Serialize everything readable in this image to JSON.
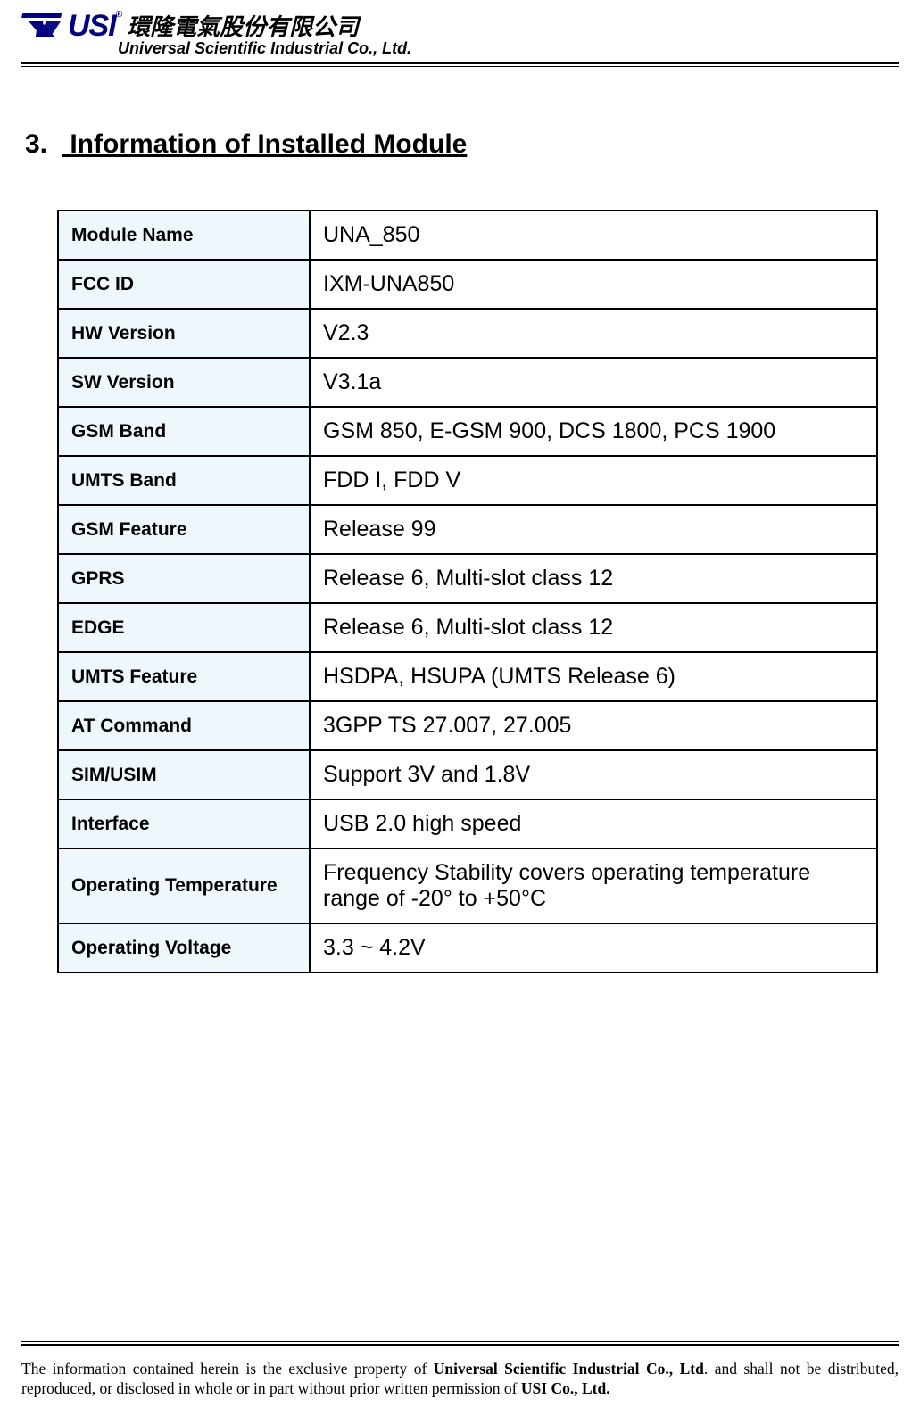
{
  "header": {
    "logo_text": "USI",
    "logo_color": "#000080",
    "chinese_name": "環隆電氣股份有限公司",
    "subtitle": "Universal Scientific Industrial Co., Ltd."
  },
  "section": {
    "number": "3.",
    "title": "Information of Installed Module"
  },
  "table": {
    "label_bg_color": "#eef8fc",
    "border_color": "#000000",
    "label_fontsize": 21,
    "value_fontsize": 25,
    "rows": [
      {
        "label": "Module Name",
        "value": "UNA_850"
      },
      {
        "label": "FCC ID",
        "value": "IXM-UNA850"
      },
      {
        "label": "HW Version",
        "value": "V2.3"
      },
      {
        "label": "SW Version",
        "value": "V3.1a"
      },
      {
        "label": "GSM Band",
        "value": "GSM 850, E-GSM 900, DCS 1800, PCS 1900"
      },
      {
        "label": "UMTS Band",
        "value": "FDD I, FDD V"
      },
      {
        "label": "GSM Feature",
        "value": "Release 99"
      },
      {
        "label": "GPRS",
        "value": "Release 6, Multi-slot class 12"
      },
      {
        "label": "EDGE",
        "value": "Release 6, Multi-slot class 12"
      },
      {
        "label": "UMTS Feature",
        "value": "HSDPA, HSUPA (UMTS Release 6)"
      },
      {
        "label": "AT Command",
        "value": "3GPP TS 27.007, 27.005"
      },
      {
        "label": "SIM/USIM",
        "value": "Support 3V and 1.8V"
      },
      {
        "label": "Interface",
        "value": "USB 2.0 high speed"
      },
      {
        "label": "Operating Temperature",
        "value": "Frequency Stability covers operating temperature range of -20° to +50°C"
      },
      {
        "label": "Operating Voltage",
        "value": "3.3 ~ 4.2V"
      }
    ]
  },
  "footer": {
    "text_prefix": "The information contained herein is the exclusive property of ",
    "company_bold": "Universal Scientific Industrial Co., Ltd",
    "text_mid": ". and shall not be distributed, reproduced, or disclosed in whole or in part without prior written permission of ",
    "company_bold2": "USI Co., Ltd."
  }
}
